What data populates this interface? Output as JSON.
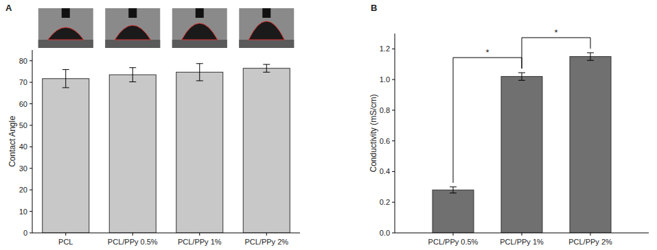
{
  "chart_data": [
    {
      "type": "bar",
      "title": "A",
      "y_label": "Contact Angle",
      "categories": [
        "PCL",
        "PCL/PPy 0.5%",
        "PCL/PPy 1%",
        "PCL/PPy 2%"
      ],
      "values": [
        71.7,
        73.5,
        74.7,
        76.5
      ],
      "errors": [
        4.2,
        3.3,
        4.0,
        1.8
      ],
      "color": "#c8c8c8",
      "ylim": [
        0,
        85
      ],
      "yticks": [
        0,
        10,
        20,
        30,
        40,
        50,
        60,
        70,
        80
      ],
      "grid": false
    },
    {
      "type": "bar",
      "title": "B",
      "y_label": "Conductivity (mS/cm)",
      "categories": [
        "PCL/PPy 0.5%",
        "PCL/PPy 1%",
        "PCL/PPy 2%"
      ],
      "values": [
        0.28,
        1.02,
        1.15
      ],
      "errors": [
        0.02,
        0.025,
        0.025
      ],
      "color": "#707070",
      "ylim": [
        0,
        1.3
      ],
      "yticks": [
        {
          "value": 0,
          "label": "0.0"
        },
        {
          "value": 0.2,
          "label": "0.2"
        },
        {
          "value": 0.4,
          "label": "0.4"
        },
        {
          "value": 0.6,
          "label": "0.6"
        },
        {
          "value": 0.8,
          "label": "0.8"
        },
        {
          "value": 1,
          "label": "1.0"
        },
        {
          "value": 1.2,
          "label": "1.2"
        }
      ],
      "grid": false,
      "annotations": [
        {
          "text": "*",
          "between": [
            0,
            1
          ]
        },
        {
          "text": "*",
          "between": [
            1,
            2
          ]
        }
      ]
    }
  ]
}
